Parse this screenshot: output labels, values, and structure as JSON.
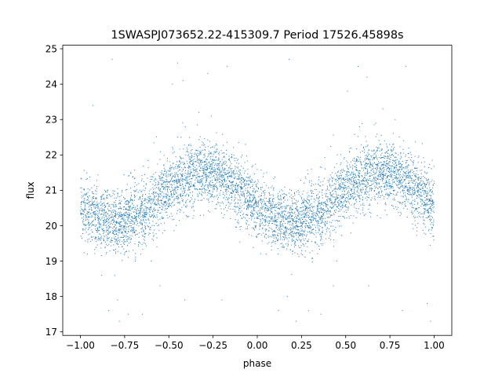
{
  "chart_data": {
    "type": "scatter",
    "title": "1SWASPJ073652.22-415309.7 Period 17526.45898s",
    "xlabel": "phase",
    "ylabel": "flux",
    "xlim": [
      -1.1,
      1.1
    ],
    "ylim": [
      16.9,
      25.1
    ],
    "xticks": [
      -1.0,
      -0.75,
      -0.5,
      -0.25,
      0.0,
      0.25,
      0.5,
      0.75,
      1.0
    ],
    "xtick_labels": [
      "−1.00",
      "−0.75",
      "−0.50",
      "−0.25",
      "0.00",
      "0.25",
      "0.50",
      "0.75",
      "1.00"
    ],
    "yticks": [
      17,
      18,
      19,
      20,
      21,
      22,
      23,
      24,
      25
    ],
    "ytick_labels": [
      "17",
      "18",
      "19",
      "20",
      "21",
      "22",
      "23",
      "24",
      "25"
    ],
    "grid": false,
    "legend": "none",
    "marker_color": "#1f77b4",
    "model": {
      "description": "phase-folded light curve, approximately sinusoidal, repeated for phase -1..0 and 0..1",
      "mean_flux": 20.8,
      "amplitude": 0.7,
      "minimum_phase": [
        -0.8,
        0.2
      ],
      "maximum_phase": [
        -0.3,
        0.7
      ],
      "scatter_sigma": 0.45,
      "n_points": 6000
    },
    "sample_points": [
      {
        "x": -1.0,
        "y": 20.5
      },
      {
        "x": -0.9,
        "y": 20.1
      },
      {
        "x": -0.8,
        "y": 20.1
      },
      {
        "x": -0.7,
        "y": 20.4
      },
      {
        "x": -0.6,
        "y": 20.9
      },
      {
        "x": -0.5,
        "y": 21.2
      },
      {
        "x": -0.4,
        "y": 21.4
      },
      {
        "x": -0.3,
        "y": 21.5
      },
      {
        "x": -0.2,
        "y": 21.4
      },
      {
        "x": -0.1,
        "y": 21.0
      },
      {
        "x": 0.0,
        "y": 20.6
      },
      {
        "x": 0.1,
        "y": 20.2
      },
      {
        "x": 0.2,
        "y": 20.1
      },
      {
        "x": 0.3,
        "y": 20.3
      },
      {
        "x": 0.4,
        "y": 20.8
      },
      {
        "x": 0.5,
        "y": 21.2
      },
      {
        "x": 0.6,
        "y": 21.4
      },
      {
        "x": 0.7,
        "y": 21.5
      },
      {
        "x": 0.8,
        "y": 21.3
      },
      {
        "x": 0.9,
        "y": 21.0
      },
      {
        "x": 1.0,
        "y": 20.6
      }
    ],
    "outliers": [
      {
        "x": -0.82,
        "y": 24.7
      },
      {
        "x": -0.93,
        "y": 23.4
      },
      {
        "x": -0.45,
        "y": 24.6
      },
      {
        "x": -0.48,
        "y": 24.0
      },
      {
        "x": -0.42,
        "y": 24.1
      },
      {
        "x": -0.33,
        "y": 23.2
      },
      {
        "x": -0.28,
        "y": 24.3
      },
      {
        "x": -0.26,
        "y": 23.1
      },
      {
        "x": -0.17,
        "y": 24.5
      },
      {
        "x": 0.18,
        "y": 24.7
      },
      {
        "x": 0.57,
        "y": 24.5
      },
      {
        "x": 0.62,
        "y": 24.2
      },
      {
        "x": 0.51,
        "y": 23.8
      },
      {
        "x": 0.71,
        "y": 23.3
      },
      {
        "x": 0.78,
        "y": 23.0
      },
      {
        "x": 0.84,
        "y": 24.5
      },
      {
        "x": 0.67,
        "y": 22.9
      },
      {
        "x": -0.88,
        "y": 18.6
      },
      {
        "x": -0.79,
        "y": 17.9
      },
      {
        "x": -0.84,
        "y": 17.6
      },
      {
        "x": -0.78,
        "y": 17.3
      },
      {
        "x": -0.73,
        "y": 17.5
      },
      {
        "x": -0.65,
        "y": 17.5
      },
      {
        "x": -0.55,
        "y": 18.3
      },
      {
        "x": -0.41,
        "y": 17.9
      },
      {
        "x": -0.2,
        "y": 17.9
      },
      {
        "x": 0.17,
        "y": 18.0
      },
      {
        "x": 0.12,
        "y": 17.6
      },
      {
        "x": 0.22,
        "y": 17.3
      },
      {
        "x": 0.29,
        "y": 17.6
      },
      {
        "x": 0.36,
        "y": 17.5
      },
      {
        "x": 0.43,
        "y": 18.3
      },
      {
        "x": 0.63,
        "y": 18.3
      },
      {
        "x": 0.82,
        "y": 17.6
      },
      {
        "x": 0.98,
        "y": 17.3
      },
      {
        "x": 0.96,
        "y": 17.8
      },
      {
        "x": -0.96,
        "y": 19.2
      },
      {
        "x": 0.05,
        "y": 19.2
      },
      {
        "x": -0.6,
        "y": 19.0
      },
      {
        "x": 0.45,
        "y": 19.0
      }
    ]
  }
}
